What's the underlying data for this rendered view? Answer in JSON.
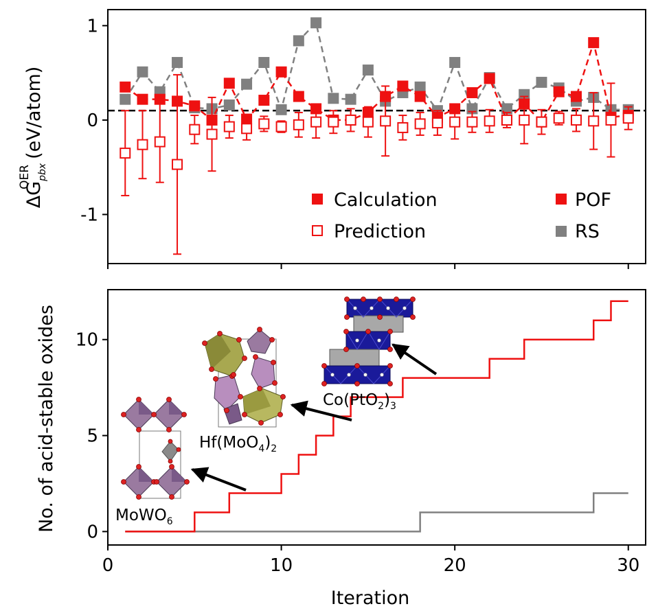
{
  "colors": {
    "red": "#ee1111",
    "gray": "#808080",
    "navy": "#1a1a9a",
    "violet": "#9a7aa0",
    "olive": "#b0b060",
    "silver": "#a8a8a8",
    "oxygen": "#dd2222"
  },
  "chart_data": [
    {
      "type": "scatter",
      "xlim": [
        0,
        31
      ],
      "ylim": [
        -1.52,
        1.17
      ],
      "yticks": [
        1,
        0,
        -1
      ],
      "ytick_labels": [
        "1",
        "0",
        "-1"
      ],
      "ylabel_base": "ΔG",
      "ylabel_sup": "OER",
      "ylabel_sub": "pbx",
      "ylabel_unit": "(eV/atom)",
      "threshold": 0.1,
      "legend": {
        "calculation": "Calculation",
        "prediction": "Prediction",
        "pof": "POF",
        "rs": "RS"
      },
      "x": [
        1,
        2,
        3,
        4,
        5,
        6,
        7,
        8,
        9,
        10,
        11,
        12,
        13,
        14,
        15,
        16,
        17,
        18,
        19,
        20,
        21,
        22,
        23,
        24,
        25,
        26,
        27,
        28,
        29,
        30
      ],
      "rs_values": [
        0.22,
        0.51,
        0.3,
        0.61,
        0.13,
        0.12,
        0.16,
        0.38,
        0.61,
        0.11,
        0.84,
        1.03,
        0.23,
        0.22,
        0.53,
        0.2,
        0.29,
        0.35,
        0.1,
        0.61,
        0.12,
        0.45,
        0.12,
        0.27,
        0.4,
        0.34,
        0.2,
        0.24,
        0.11,
        0.11
      ],
      "pof_values": [
        0.35,
        0.22,
        0.22,
        0.2,
        0.15,
        0.0,
        0.39,
        0.01,
        0.21,
        0.51,
        0.25,
        0.12,
        0.0,
        0.0,
        0.08,
        0.25,
        0.36,
        0.25,
        0.03,
        0.12,
        0.29,
        0.44,
        0.0,
        0.17,
        -0.02,
        0.3,
        0.25,
        0.82,
        0.03,
        0.05
      ],
      "pred_values": [
        -0.35,
        -0.26,
        -0.23,
        -0.47,
        -0.1,
        -0.15,
        -0.07,
        -0.09,
        -0.04,
        -0.07,
        -0.05,
        -0.02,
        -0.02,
        0.0,
        -0.02,
        -0.01,
        -0.08,
        -0.04,
        -0.03,
        -0.02,
        -0.02,
        -0.01,
        0.0,
        0.0,
        -0.02,
        0.02,
        0.0,
        -0.01,
        0.0,
        0.02
      ],
      "pred_err": [
        0.45,
        0.36,
        0.43,
        0.95,
        0.15,
        0.39,
        0.12,
        0.12,
        0.08,
        0.06,
        0.13,
        0.17,
        0.12,
        0.12,
        0.16,
        0.37,
        0.13,
        0.12,
        0.13,
        0.18,
        0.11,
        0.12,
        0.08,
        0.25,
        0.13,
        0.07,
        0.12,
        0.3,
        0.39,
        0.12
      ]
    },
    {
      "type": "line",
      "xlim": [
        0,
        31
      ],
      "ylim": [
        -0.7,
        12.6
      ],
      "xticks": [
        0,
        10,
        20,
        30
      ],
      "xtick_labels": [
        "0",
        "10",
        "20",
        "30"
      ],
      "yticks": [
        0,
        5,
        10
      ],
      "ytick_labels": [
        "0",
        "5",
        "10"
      ],
      "xlabel": "Iteration",
      "ylabel": "No. of acid-stable oxides",
      "pof_steps": [
        [
          1,
          0
        ],
        [
          5,
          0
        ],
        [
          5,
          1
        ],
        [
          7,
          1
        ],
        [
          7,
          2
        ],
        [
          10,
          2
        ],
        [
          10,
          3
        ],
        [
          11,
          3
        ],
        [
          11,
          4
        ],
        [
          12,
          4
        ],
        [
          12,
          5
        ],
        [
          13,
          5
        ],
        [
          13,
          6
        ],
        [
          14,
          6
        ],
        [
          14,
          7
        ],
        [
          17,
          7
        ],
        [
          17,
          8
        ],
        [
          19,
          8
        ],
        [
          19,
          8
        ],
        [
          22,
          8
        ],
        [
          22,
          9
        ],
        [
          24,
          9
        ],
        [
          24,
          10
        ],
        [
          28,
          10
        ],
        [
          28,
          11
        ],
        [
          29,
          11
        ],
        [
          29,
          12
        ],
        [
          30,
          12
        ]
      ],
      "rs_steps": [
        [
          1,
          0
        ],
        [
          18,
          0
        ],
        [
          18,
          1
        ],
        [
          28,
          1
        ],
        [
          28,
          2
        ],
        [
          30,
          2
        ]
      ],
      "annotations": {
        "mowo6": {
          "base": "MoWO",
          "sub": "6"
        },
        "hfmoo4": {
          "base": "Hf(MoO",
          "sub1": "4",
          "mid": ")",
          "sub2": "2"
        },
        "copto2": {
          "base": "Co(PtO",
          "sub1": "2",
          "mid": ")",
          "sub2": "3"
        }
      }
    }
  ]
}
